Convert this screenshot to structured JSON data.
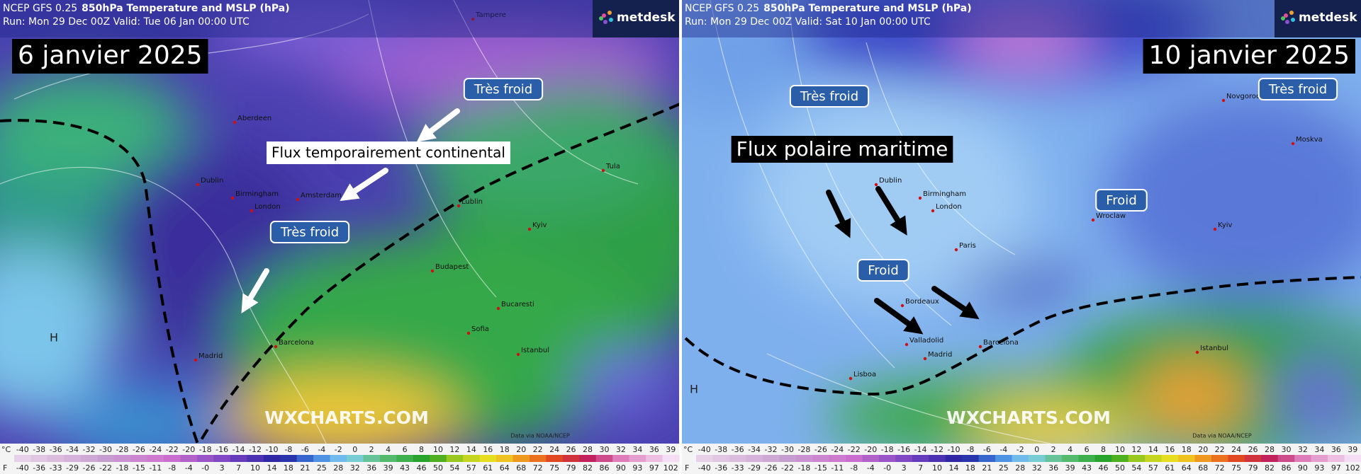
{
  "panels": [
    {
      "header": {
        "model": "NCEP GFS 0.25",
        "product": "850hPa Temperature and MSLP (hPa)",
        "run": "Run: Mon 29 Dec 00Z Valid: Tue 06 Jan 00:00 UTC"
      },
      "logo": "metdesk",
      "date_label": "6 janvier 2025",
      "annotations": [
        "Très froid",
        "Flux temporairement continental",
        "Très froid"
      ],
      "pressure_center": "H",
      "cities": [
        "Tampere",
        "Aberdeen",
        "Dublin",
        "Birmingham",
        "London",
        "Amsterdam",
        "Lublin",
        "Kyiv",
        "Tula",
        "Budapest",
        "Bucaresti",
        "Sofia",
        "Istanbul",
        "Barcelona",
        "Madrid"
      ],
      "watermark": "WXCHARTS.COM",
      "credit": "Data via NOAA/NCEP",
      "scale": {
        "celsius_unit": "°C",
        "celsius": [
          "-40",
          "-38",
          "-36",
          "-34",
          "-32",
          "-30",
          "-28",
          "-26",
          "-24",
          "-22",
          "-20",
          "-18",
          "-16",
          "-14",
          "-12",
          "-10",
          "-8",
          "-6",
          "-4",
          "-2",
          "0",
          "2",
          "4",
          "6",
          "8",
          "10",
          "12",
          "14",
          "16",
          "18",
          "20",
          "22",
          "24",
          "26",
          "28",
          "30",
          "32",
          "34",
          "36",
          "39"
        ],
        "fahrenheit_unit": "F",
        "fahrenheit": [
          "-40",
          "-36",
          "-33",
          "-29",
          "-26",
          "-22",
          "-18",
          "-15",
          "-11",
          "-8",
          "-4",
          "-0",
          "3",
          "7",
          "10",
          "14",
          "18",
          "21",
          "25",
          "28",
          "32",
          "36",
          "39",
          "43",
          "46",
          "50",
          "54",
          "57",
          "61",
          "64",
          "68",
          "72",
          "75",
          "79",
          "82",
          "86",
          "90",
          "93",
          "97",
          "102"
        ]
      }
    },
    {
      "header": {
        "model": "NCEP GFS 0.25",
        "product": "850hPa Temperature and MSLP (hPa)",
        "run": "Run: Mon 29 Dec 00Z Valid: Sat 10 Jan 00:00 UTC"
      },
      "logo": "metdesk",
      "date_label": "10 janvier 2025",
      "annotations": [
        "Très froid",
        "Très froid",
        "Flux polaire maritime",
        "Froid",
        "Froid"
      ],
      "pressure_center": "H",
      "cities": [
        "Novgorod",
        "Moskva",
        "Dublin",
        "Birmingham",
        "London",
        "Paris",
        "Wroclaw",
        "Kyiv",
        "Bordeaux",
        "Valladolid",
        "Barcelona",
        "Madrid",
        "Lisboa",
        "Istanbul"
      ],
      "watermark": "WXCHARTS.COM",
      "credit": "Data via NOAA/NCEP",
      "scale": {
        "celsius_unit": "°C",
        "celsius": [
          "-40",
          "-38",
          "-36",
          "-34",
          "-32",
          "-30",
          "-28",
          "-26",
          "-24",
          "-22",
          "-20",
          "-18",
          "-16",
          "-14",
          "-12",
          "-10",
          "-8",
          "-6",
          "-4",
          "-2",
          "0",
          "2",
          "4",
          "6",
          "8",
          "10",
          "12",
          "14",
          "16",
          "18",
          "20",
          "22",
          "24",
          "26",
          "28",
          "30",
          "32",
          "34",
          "36",
          "39"
        ],
        "fahrenheit_unit": "F",
        "fahrenheit": [
          "-40",
          "-36",
          "-33",
          "-29",
          "-26",
          "-22",
          "-18",
          "-15",
          "-11",
          "-8",
          "-4",
          "-0",
          "3",
          "7",
          "10",
          "14",
          "18",
          "21",
          "25",
          "28",
          "32",
          "36",
          "39",
          "43",
          "46",
          "50",
          "54",
          "57",
          "61",
          "64",
          "68",
          "72",
          "75",
          "79",
          "82",
          "86",
          "90",
          "93",
          "97",
          "102"
        ]
      }
    }
  ]
}
